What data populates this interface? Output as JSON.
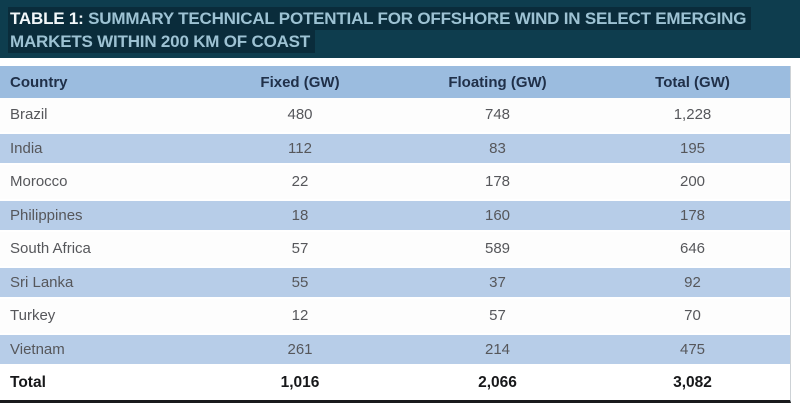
{
  "title": {
    "prefix": "TABLE 1:",
    "line1": " SUMMARY TECHNICAL POTENTIAL FOR OFFSHORE WIND IN SELECT EMERGING",
    "line2": "MARKETS WITHIN 200 KM OF COAST"
  },
  "colors": {
    "banner_bg": "#0e3d4e",
    "banner_text_highlight": "#0a2c3b",
    "title_prefix_color": "#f2f7f9",
    "title_text_color": "#9dc2d3",
    "header_row_bg": "#9bbcdf",
    "header_text": "#203049",
    "stripe_row_bg": "#b7cde8",
    "cell_text": "#56575b",
    "total_text": "#17181a",
    "bottom_border": "#191a1c"
  },
  "table": {
    "columns": [
      "Country",
      "Fixed (GW)",
      "Floating (GW)",
      "Total (GW)"
    ],
    "rows": [
      [
        "Brazil",
        "480",
        "748",
        "1,228"
      ],
      [
        "India",
        "112",
        "83",
        "195"
      ],
      [
        "Morocco",
        "22",
        "178",
        "200"
      ],
      [
        "Philippines",
        "18",
        "160",
        "178"
      ],
      [
        "South Africa",
        "57",
        "589",
        "646"
      ],
      [
        "Sri Lanka",
        "55",
        "37",
        "92"
      ],
      [
        "Turkey",
        "12",
        "57",
        "70"
      ],
      [
        "Vietnam",
        "261",
        "214",
        "475"
      ]
    ],
    "total_row": [
      "Total",
      "1,016",
      "2,066",
      "3,082"
    ]
  },
  "chart_data": {
    "type": "table",
    "title": "TABLE 1: SUMMARY TECHNICAL POTENTIAL FOR OFFSHORE WIND IN SELECT EMERGING MARKETS WITHIN 200 KM OF COAST",
    "columns": [
      "Country",
      "Fixed (GW)",
      "Floating (GW)",
      "Total (GW)"
    ],
    "categories": [
      "Brazil",
      "India",
      "Morocco",
      "Philippines",
      "South Africa",
      "Sri Lanka",
      "Turkey",
      "Vietnam",
      "Total"
    ],
    "series": [
      {
        "name": "Fixed (GW)",
        "values": [
          480,
          112,
          22,
          18,
          57,
          55,
          12,
          261,
          1016
        ]
      },
      {
        "name": "Floating (GW)",
        "values": [
          748,
          83,
          178,
          160,
          589,
          37,
          57,
          214,
          2066
        ]
      },
      {
        "name": "Total (GW)",
        "values": [
          1228,
          195,
          200,
          178,
          646,
          92,
          70,
          475,
          3082
        ]
      }
    ]
  }
}
